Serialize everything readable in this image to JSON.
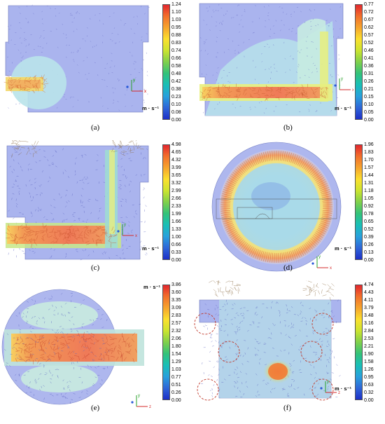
{
  "unit": "m · s⁻¹",
  "axis_labels": {
    "x": "x",
    "y": "y",
    "z": "z"
  },
  "colormap": [
    "#e3262e",
    "#f2702b",
    "#f6a52d",
    "#fbe02e",
    "#cbe42f",
    "#7fd04b",
    "#33c27a",
    "#19bfb7",
    "#28a0dc",
    "#2f66d8",
    "#1d2fc7"
  ],
  "panels": [
    {
      "label": "(a)",
      "axes": [
        "y",
        "x"
      ],
      "ticks": [
        "1.24",
        "1.10",
        "1.03",
        "0.95",
        "0.88",
        "0.83",
        "0.74",
        "0.66",
        "0.58",
        "0.48",
        "0.42",
        "0.38",
        "0.23",
        "0.10",
        "0.08",
        "0.00"
      ]
    },
    {
      "label": "(b)",
      "axes": [
        "y",
        "x"
      ],
      "ticks": [
        "0.77",
        "0.72",
        "0.67",
        "0.62",
        "0.57",
        "0.52",
        "0.46",
        "0.41",
        "0.36",
        "0.31",
        "0.26",
        "0.21",
        "0.15",
        "0.10",
        "0.05",
        "0.00"
      ]
    },
    {
      "label": "(c)",
      "axes": [
        "y",
        "x"
      ],
      "ticks": [
        "4.98",
        "4.65",
        "4.32",
        "3.99",
        "3.65",
        "3.32",
        "2.99",
        "2.66",
        "2.33",
        "1.99",
        "1.66",
        "1.33",
        "1.00",
        "0.66",
        "0.33",
        "0.00"
      ]
    },
    {
      "label": "(d)",
      "axes": [
        "y",
        "x"
      ],
      "ticks": [
        "1.96",
        "1.83",
        "1.70",
        "1.57",
        "1.44",
        "1.31",
        "1.18",
        "1.05",
        "0.92",
        "0.78",
        "0.65",
        "0.52",
        "0.39",
        "0.26",
        "0.13",
        "0.00"
      ]
    },
    {
      "label": "(e)",
      "axes": [
        "y",
        "z"
      ],
      "ticks": [
        "3.86",
        "3.60",
        "3.35",
        "3.09",
        "2.83",
        "2.57",
        "2.32",
        "2.06",
        "1.80",
        "1.54",
        "1.29",
        "1.03",
        "0.77",
        "0.51",
        "0.26",
        "0.00"
      ]
    },
    {
      "label": "(f)",
      "axes": [
        "y",
        "z"
      ],
      "ticks": [
        "4.74",
        "4.43",
        "4.11",
        "3.79",
        "3.48",
        "3.16",
        "2.84",
        "2.53",
        "2.21",
        "1.90",
        "1.58",
        "1.26",
        "0.95",
        "0.63",
        "0.32",
        "0.00"
      ]
    }
  ]
}
